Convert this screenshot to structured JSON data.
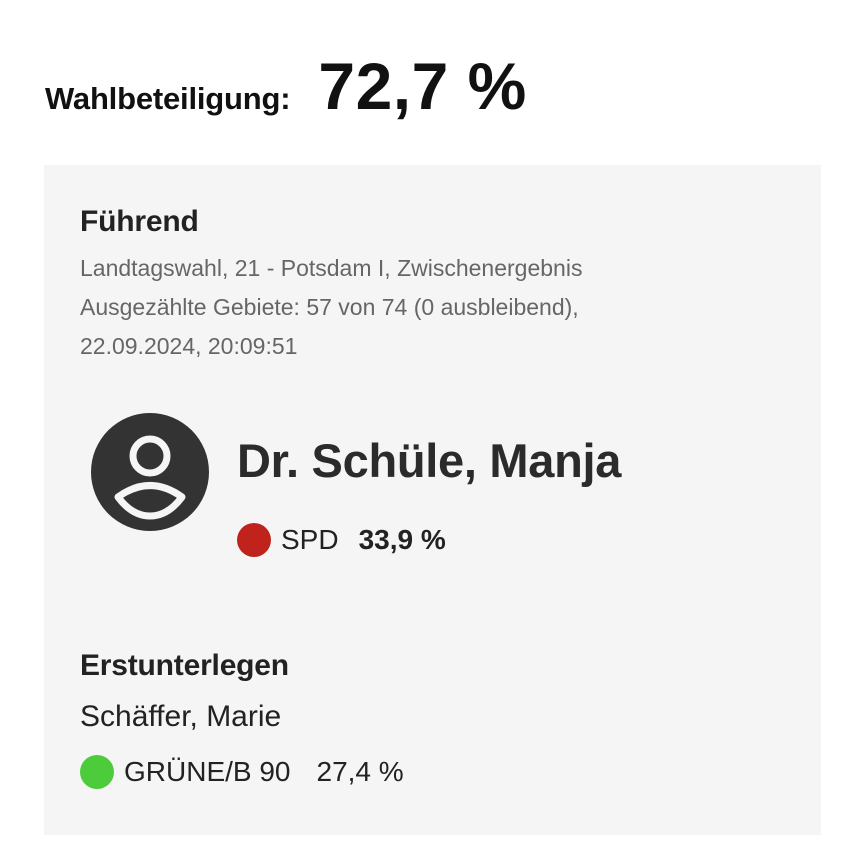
{
  "turnout": {
    "label": "Wahlbeteiligung:",
    "value": "72,7 %"
  },
  "leading": {
    "title": "Führend",
    "meta_lines": [
      "Landtagswahl, 21 - Potsdam I, Zwischenergebnis",
      "Ausgezählte Gebiete: 57 von 74 (0 ausbleibend),",
      "22.09.2024, 20:09:51"
    ],
    "avatar_icon": "account-circle-icon",
    "name": "Dr. Schüle, Manja",
    "party": "SPD",
    "party_color": "#c0231c",
    "share": "33,9 %"
  },
  "runner_up": {
    "title": "Erstunterlegen",
    "name": "Schäffer, Marie",
    "party": "GRÜNE/B 90",
    "party_color": "#4ccc3a",
    "share": "27,4 %"
  }
}
